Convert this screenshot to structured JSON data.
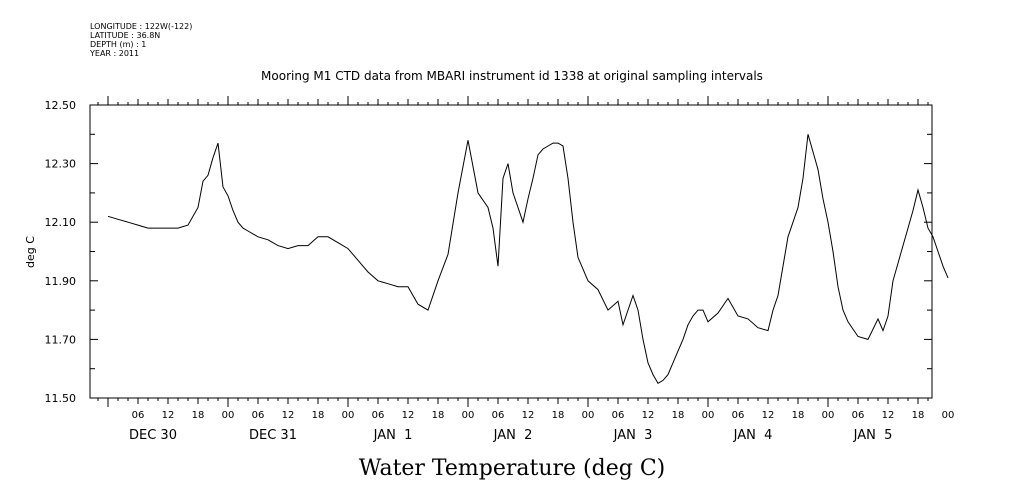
{
  "header": {
    "lines": [
      "LONGITUDE : 122W(-122)",
      "LATITUDE : 36.8N",
      "DEPTH (m) : 1",
      "YEAR : 2011"
    ]
  },
  "chart_data": {
    "type": "line",
    "title": "Mooring M1 CTD data from MBARI instrument id 1338 at original sampling intervals",
    "xlabel": "Water Temperature (deg C)",
    "ylabel": "deg C",
    "ylim": [
      11.5,
      12.5
    ],
    "yticks": [
      "11.50",
      "11.70",
      "11.90",
      "12.10",
      "12.30",
      "12.50"
    ],
    "xlim_hours": [
      0,
      170
    ],
    "hour_ticks": [
      "06",
      "12",
      "18",
      "00",
      "06",
      "12",
      "18",
      "00",
      "06",
      "12",
      "18",
      "00",
      "06",
      "12",
      "18",
      "00",
      "06",
      "12",
      "18",
      "00",
      "06",
      "12",
      "18",
      "00",
      "06",
      "12",
      "18",
      "00"
    ],
    "day_labels": [
      "DEC 30",
      "DEC 31",
      "JAN  1",
      "JAN  2",
      "JAN  3",
      "JAN  4",
      "JAN  5"
    ],
    "grid": false,
    "series": [
      {
        "x_hours_since_dec30_00": [
          0,
          2,
          4,
          6,
          8,
          10,
          12,
          14,
          16,
          18,
          19,
          20,
          21,
          22,
          23,
          24,
          25,
          26,
          27,
          28,
          29,
          30,
          32,
          34,
          36,
          38,
          40,
          42,
          44,
          46,
          48,
          50,
          52,
          54,
          56,
          58,
          60,
          62,
          64,
          66,
          68,
          70,
          72,
          74,
          76,
          77,
          78,
          79,
          80,
          81,
          82,
          83,
          84,
          85,
          86,
          87,
          88,
          89,
          90,
          91,
          92,
          93,
          94,
          95,
          96,
          98,
          100,
          102,
          103,
          104,
          105,
          106,
          107,
          108,
          109,
          110,
          111,
          112,
          113,
          114,
          115,
          116,
          117,
          118,
          119,
          120,
          122,
          124,
          126,
          128,
          130,
          132,
          133,
          134,
          135,
          136,
          137,
          138,
          139,
          140,
          142,
          143,
          144,
          145,
          146,
          147,
          148,
          150,
          152,
          154,
          155,
          156,
          157,
          158,
          159,
          160,
          161,
          162,
          163,
          164,
          165,
          166,
          167,
          168
        ],
        "values": [
          12.12,
          12.11,
          12.1,
          12.09,
          12.08,
          12.08,
          12.08,
          12.08,
          12.09,
          12.15,
          12.24,
          12.26,
          12.32,
          12.37,
          12.22,
          12.19,
          12.14,
          12.1,
          12.08,
          12.07,
          12.06,
          12.05,
          12.04,
          12.02,
          12.01,
          12.02,
          12.02,
          12.05,
          12.05,
          12.03,
          12.01,
          11.97,
          11.93,
          11.9,
          11.89,
          11.88,
          11.88,
          11.82,
          11.8,
          11.9,
          11.99,
          12.2,
          12.38,
          12.2,
          12.15,
          12.08,
          11.95,
          12.25,
          12.3,
          12.2,
          12.15,
          12.1,
          12.18,
          12.25,
          12.33,
          12.35,
          12.36,
          12.37,
          12.37,
          12.36,
          12.25,
          12.1,
          11.98,
          11.94,
          11.9,
          11.87,
          11.8,
          11.83,
          11.75,
          11.8,
          11.85,
          11.8,
          11.7,
          11.62,
          11.58,
          11.55,
          11.56,
          11.58,
          11.62,
          11.66,
          11.7,
          11.75,
          11.78,
          11.8,
          11.8,
          11.76,
          11.79,
          11.84,
          11.78,
          11.77,
          11.74,
          11.73,
          11.8,
          11.85,
          11.95,
          12.05,
          12.1,
          12.15,
          12.25,
          12.4,
          12.28,
          12.18,
          12.1,
          12.0,
          11.88,
          11.8,
          11.76,
          11.71,
          11.7,
          11.77,
          11.73,
          11.78,
          11.9,
          11.96,
          12.02,
          12.08,
          12.14,
          12.21,
          12.15,
          12.08,
          12.05,
          12.0,
          11.95,
          11.91
        ]
      }
    ]
  }
}
